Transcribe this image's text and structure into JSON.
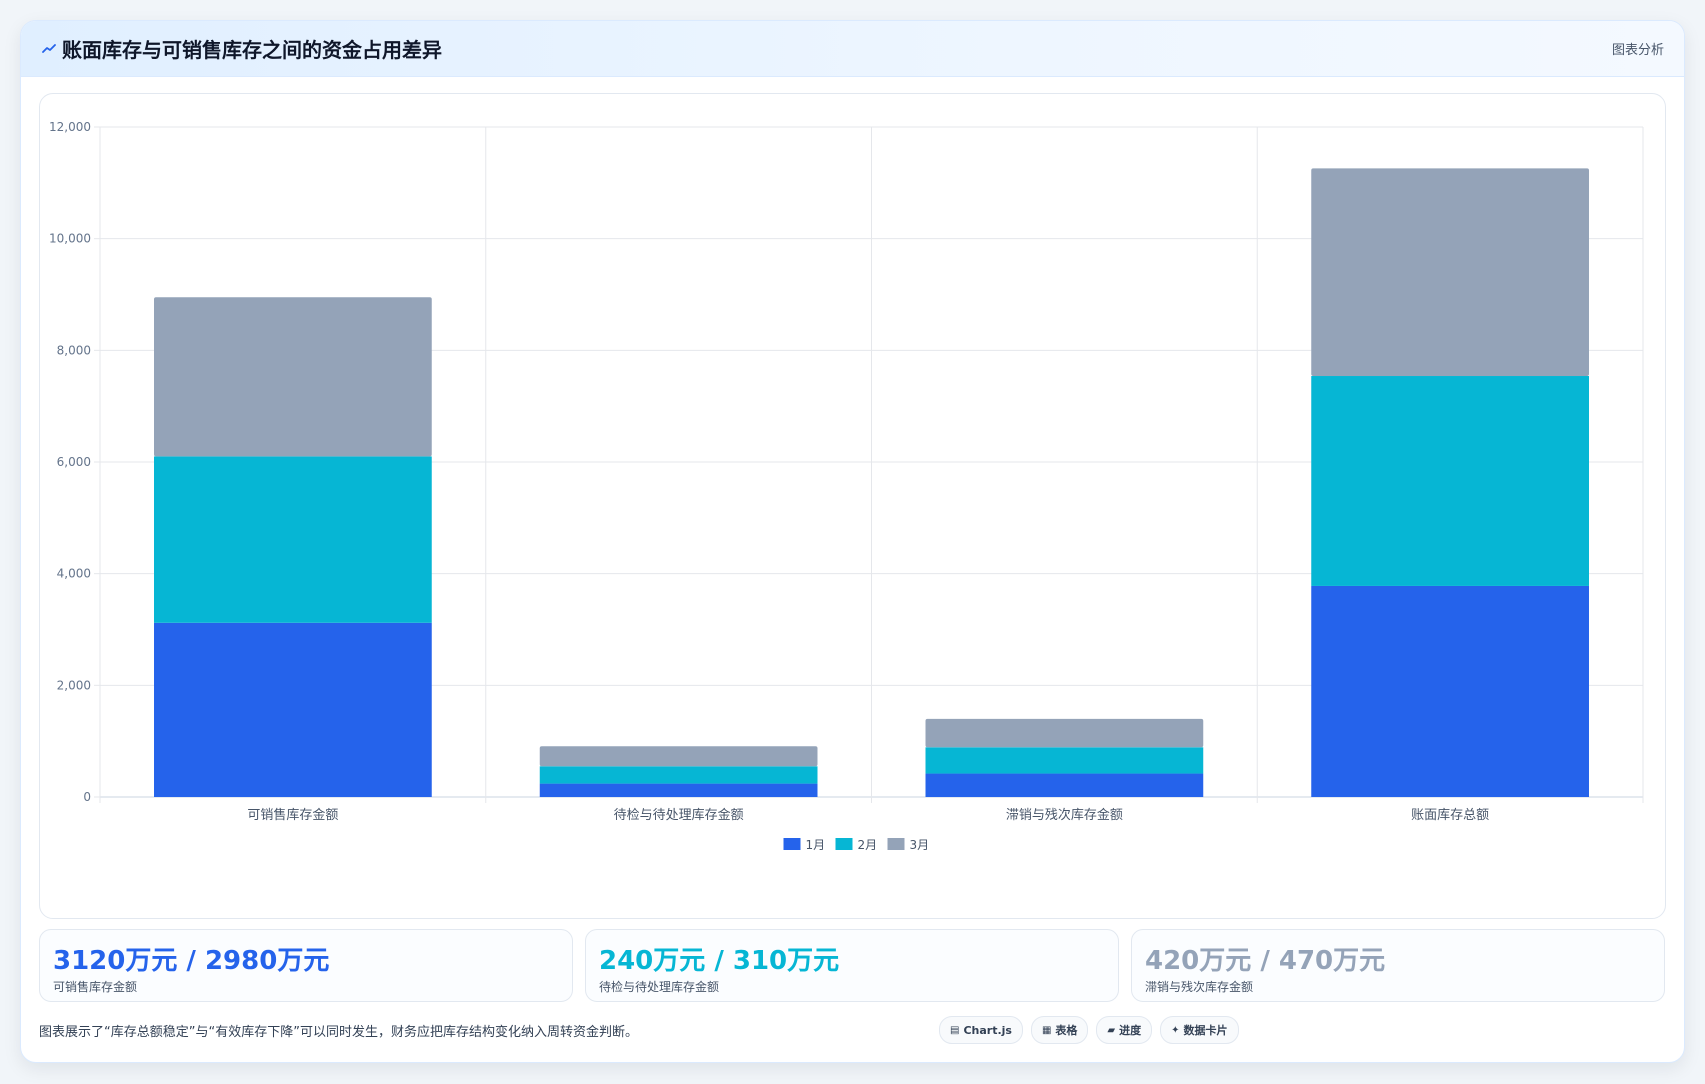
{
  "header": {
    "title": "账面库存与可销售库存之间的资金占用差异",
    "right_label": "图表分析",
    "icon": "trend-line-icon"
  },
  "chart_data": {
    "type": "bar",
    "stacked": true,
    "categories": [
      "可销售库存金额",
      "待检与待处理库存金额",
      "滞销与残次库存金额",
      "账面库存总额"
    ],
    "series": [
      {
        "name": "1月",
        "values": [
          3120,
          240,
          420,
          3780
        ],
        "color": "#2563eb"
      },
      {
        "name": "2月",
        "values": [
          2980,
          310,
          470,
          3760
        ],
        "color": "#06b6d4"
      },
      {
        "name": "3月",
        "values": [
          2850,
          360,
          510,
          3720
        ],
        "color": "#94a3b8"
      }
    ],
    "ylim": [
      0,
      12000
    ],
    "yticks": [
      0,
      2000,
      4000,
      6000,
      8000,
      10000,
      12000
    ],
    "ytick_labels": [
      "0",
      "2,000",
      "4,000",
      "6,000",
      "8,000",
      "10,000",
      "12,000"
    ],
    "grid": true,
    "legend": "bottom"
  },
  "stats": [
    {
      "value": "3120万元 / 2980万元",
      "label": "可销售库存金额",
      "color": "#2563eb"
    },
    {
      "value": "240万元 / 310万元",
      "label": "待检与待处理库存金额",
      "color": "#06b6d4"
    },
    {
      "value": "420万元 / 470万元",
      "label": "滞销与残次库存金额",
      "color": "#94a3b8"
    }
  ],
  "footnote": "图表展示了“库存总额稳定”与“有效库存下降”可以同时发生，财务应把库存结构变化纳入周转资金判断。",
  "tags": [
    {
      "icon": "chart-icon",
      "glyph": "▤",
      "label": "Chart.js"
    },
    {
      "icon": "table-icon",
      "glyph": "▦",
      "label": "表格"
    },
    {
      "icon": "progress-icon",
      "glyph": "▰",
      "label": "进度"
    },
    {
      "icon": "sparkle-icon",
      "glyph": "✦",
      "label": "数据卡片"
    }
  ]
}
